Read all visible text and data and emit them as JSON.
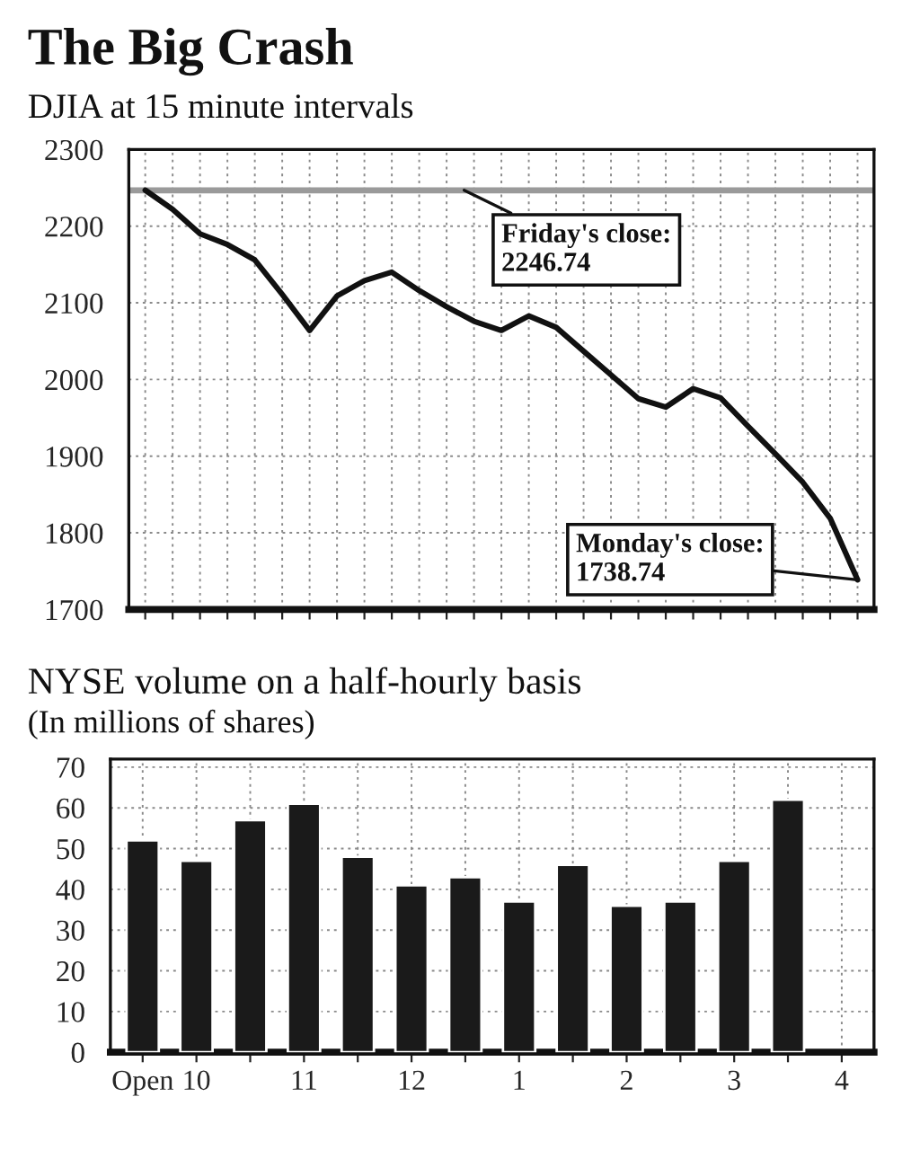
{
  "chart_data": [
    {
      "type": "line",
      "title": "The Big Crash",
      "subtitle": "DJIA at 15 minute intervals",
      "categories": [
        null,
        null,
        null,
        null,
        null,
        null,
        null,
        null,
        null,
        null,
        null,
        null,
        null,
        null,
        null,
        null,
        null,
        null,
        null,
        null,
        null,
        null,
        null,
        null,
        null,
        null,
        null
      ],
      "series": [
        {
          "color": "#111111",
          "values": [
            2247,
            2222,
            2190,
            2176,
            2156,
            2111,
            2064,
            2109,
            2129,
            2140,
            2116,
            2095,
            2076,
            2064,
            2083,
            2068,
            2037,
            2006,
            1975,
            1964,
            1988,
            1976,
            1939,
            1903,
            1866,
            1819,
            1738.74
          ]
        }
      ],
      "ylim": [
        1700,
        2300
      ],
      "yticks": [
        1700,
        1800,
        1900,
        2000,
        2100,
        2200,
        2300
      ],
      "grid": true,
      "ref_lines": [
        {
          "axis": "y",
          "value": 2246.74,
          "label": "Friday's close:\n2246.74",
          "color": "#9a9a9a"
        }
      ],
      "annotations": [
        "Monday's close:\n1738.74"
      ]
    },
    {
      "type": "bar",
      "title": "NYSE volume on a half-hourly basis",
      "subtitle": "(In millions of shares)",
      "categories": [
        "Open",
        "10",
        null,
        "11",
        null,
        "12",
        null,
        "1",
        null,
        "2",
        null,
        "3",
        null,
        "4"
      ],
      "series": [
        {
          "color": "#1a1a1a",
          "values": [
            52,
            47,
            57,
            61,
            48,
            41,
            43,
            37,
            46,
            36,
            37,
            47,
            62,
            null
          ]
        }
      ],
      "ylim": [
        0,
        72
      ],
      "yticks": [
        0,
        10,
        20,
        30,
        40,
        50,
        60,
        70
      ],
      "grid": true
    }
  ]
}
